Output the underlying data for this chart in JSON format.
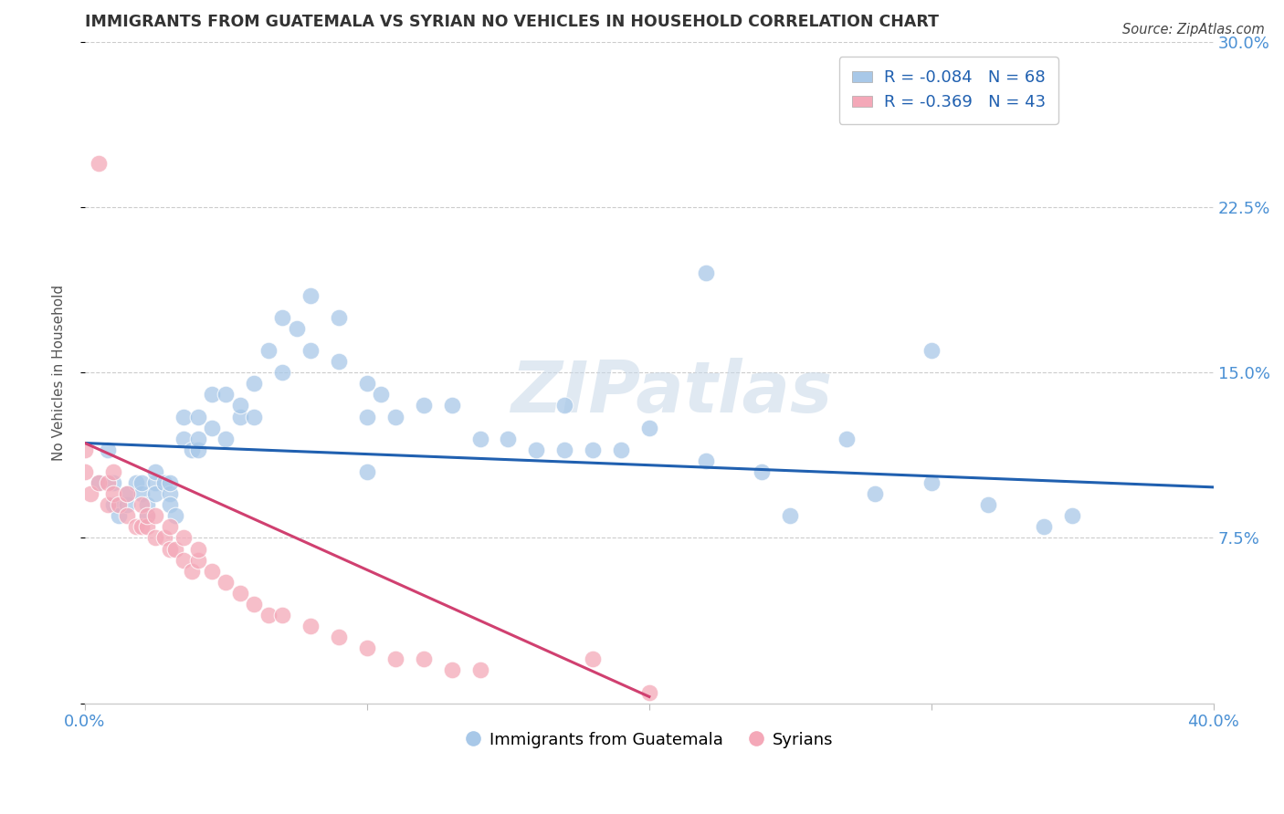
{
  "title": "IMMIGRANTS FROM GUATEMALA VS SYRIAN NO VEHICLES IN HOUSEHOLD CORRELATION CHART",
  "source": "Source: ZipAtlas.com",
  "ylabel": "No Vehicles in Household",
  "xlim": [
    0.0,
    0.4
  ],
  "ylim": [
    0.0,
    0.3
  ],
  "legend_labels": [
    "Immigrants from Guatemala",
    "Syrians"
  ],
  "blue_color": "#a8c8e8",
  "pink_color": "#f4a8b8",
  "blue_line_color": "#2060b0",
  "pink_line_color": "#d04070",
  "watermark": "ZIPatlas",
  "blue_R": -0.084,
  "blue_N": 68,
  "pink_R": -0.369,
  "pink_N": 43,
  "blue_scatter_x": [
    0.005,
    0.008,
    0.01,
    0.01,
    0.012,
    0.015,
    0.015,
    0.018,
    0.02,
    0.02,
    0.022,
    0.022,
    0.025,
    0.025,
    0.025,
    0.028,
    0.03,
    0.03,
    0.03,
    0.032,
    0.035,
    0.035,
    0.038,
    0.04,
    0.04,
    0.04,
    0.045,
    0.045,
    0.05,
    0.05,
    0.055,
    0.055,
    0.06,
    0.06,
    0.065,
    0.07,
    0.07,
    0.075,
    0.08,
    0.08,
    0.09,
    0.09,
    0.1,
    0.1,
    0.105,
    0.11,
    0.12,
    0.13,
    0.14,
    0.15,
    0.16,
    0.17,
    0.18,
    0.19,
    0.2,
    0.22,
    0.24,
    0.25,
    0.27,
    0.28,
    0.3,
    0.32,
    0.34,
    0.35,
    0.3,
    0.22,
    0.17,
    0.1
  ],
  "blue_scatter_y": [
    0.1,
    0.115,
    0.09,
    0.1,
    0.085,
    0.09,
    0.095,
    0.1,
    0.095,
    0.1,
    0.085,
    0.09,
    0.1,
    0.095,
    0.105,
    0.1,
    0.095,
    0.09,
    0.1,
    0.085,
    0.12,
    0.13,
    0.115,
    0.115,
    0.12,
    0.13,
    0.125,
    0.14,
    0.12,
    0.14,
    0.13,
    0.135,
    0.13,
    0.145,
    0.16,
    0.15,
    0.175,
    0.17,
    0.16,
    0.185,
    0.155,
    0.175,
    0.13,
    0.145,
    0.14,
    0.13,
    0.135,
    0.135,
    0.12,
    0.12,
    0.115,
    0.115,
    0.115,
    0.115,
    0.125,
    0.11,
    0.105,
    0.085,
    0.12,
    0.095,
    0.1,
    0.09,
    0.08,
    0.085,
    0.16,
    0.195,
    0.135,
    0.105
  ],
  "pink_scatter_x": [
    0.0,
    0.0,
    0.002,
    0.005,
    0.005,
    0.008,
    0.008,
    0.01,
    0.01,
    0.012,
    0.015,
    0.015,
    0.018,
    0.02,
    0.02,
    0.022,
    0.022,
    0.025,
    0.025,
    0.028,
    0.03,
    0.03,
    0.032,
    0.035,
    0.035,
    0.038,
    0.04,
    0.04,
    0.045,
    0.05,
    0.055,
    0.06,
    0.065,
    0.07,
    0.08,
    0.09,
    0.1,
    0.11,
    0.12,
    0.13,
    0.14,
    0.18,
    0.2
  ],
  "pink_scatter_y": [
    0.105,
    0.115,
    0.095,
    0.1,
    0.245,
    0.09,
    0.1,
    0.095,
    0.105,
    0.09,
    0.085,
    0.095,
    0.08,
    0.08,
    0.09,
    0.08,
    0.085,
    0.075,
    0.085,
    0.075,
    0.07,
    0.08,
    0.07,
    0.065,
    0.075,
    0.06,
    0.065,
    0.07,
    0.06,
    0.055,
    0.05,
    0.045,
    0.04,
    0.04,
    0.035,
    0.03,
    0.025,
    0.02,
    0.02,
    0.015,
    0.015,
    0.02,
    0.005
  ],
  "blue_line_x": [
    0.0,
    0.4
  ],
  "blue_line_y": [
    0.118,
    0.098
  ],
  "pink_line_x": [
    0.0,
    0.2
  ],
  "pink_line_y": [
    0.118,
    0.003
  ]
}
